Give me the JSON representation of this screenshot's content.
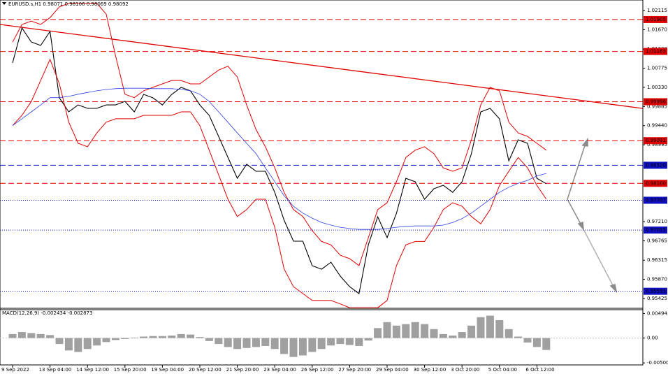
{
  "chart_data": [
    {
      "type": "line",
      "title": "EURUSD.s,H1 0.98071 0.98106 0.98069 0.98092",
      "categories": [
        "9 Sep 2022",
        null,
        null,
        null,
        "13 Sep 04:00",
        null,
        null,
        null,
        "14 Sep 12:00",
        null,
        null,
        null,
        "15 Sep 20:00",
        null,
        null,
        null,
        "19 Sep 04:00",
        null,
        null,
        null,
        "20 Sep 12:00",
        null,
        null,
        null,
        "21 Sep 20:00",
        null,
        null,
        null,
        "23 Sep 04:00",
        null,
        null,
        null,
        "26 Sep 12:00",
        null,
        null,
        null,
        "27 Sep 20:00",
        null,
        null,
        null,
        "29 Sep 04:00",
        null,
        null,
        null,
        "30 Sep 12:00",
        null,
        null,
        null,
        "3 Oct 20:00",
        null,
        null,
        null,
        "5 Oct 04:00",
        null,
        null,
        null,
        "6 Oct 12:00",
        null
      ],
      "series": [
        {
          "color": "#000000",
          "values": [
            1.00897,
            1.01709,
            1.01384,
            1.01303,
            1.01628,
            1.00085,
            0.9976,
            0.99922,
            0.99841,
            0.99841,
            0.99922,
            0.99922,
            1.00004,
            0.9976,
            1.00166,
            1.00085,
            0.99922,
            1.00166,
            1.00328,
            1.00247,
            0.99922,
            0.99679,
            0.99192,
            0.98704,
            0.98217,
            0.98542,
            0.9838,
            0.9838,
            0.97892,
            0.97243,
            0.96756,
            0.96756,
            0.96187,
            0.96106,
            0.96268,
            0.95944,
            0.957,
            0.95538,
            0.96675,
            0.97324,
            0.96837,
            0.97405,
            0.98217,
            0.98136,
            0.9773,
            0.97974,
            0.98055,
            0.97892,
            0.98136,
            0.98786,
            0.9976,
            0.99841,
            0.99598,
            0.98623,
            0.99111,
            0.99029,
            0.98217,
            0.98092
          ]
        },
        {
          "color": "#e00000",
          "values": [
            1.0138,
            1.0179,
            1.0187,
            1.0179,
            1.0195,
            1.022,
            1.0228,
            1.0228,
            1.0228,
            1.0228,
            1.0203,
            1.0106,
            1.0017,
            1.0009,
            1.0025,
            1.0033,
            1.0041,
            1.0049,
            1.0049,
            1.0041,
            1.0041,
            1.0057,
            1.0073,
            1.0082,
            1.0057,
            0.9992,
            0.9935,
            0.9895,
            0.9846,
            0.9789,
            0.9749,
            0.9733,
            0.97,
            0.9675,
            0.9667,
            0.9643,
            0.9635,
            0.9619,
            0.9684,
            0.9749,
            0.9765,
            0.9814,
            0.987,
            0.9887,
            0.9895,
            0.9879,
            0.9846,
            0.9838,
            0.9846,
            0.9911,
            0.9992,
            1.0033,
            1.0025,
            0.9952,
            0.9927,
            0.9919,
            0.9903,
            0.9887
          ]
        },
        {
          "color": "#e00000",
          "values": [
            0.9944,
            0.9968,
            1.0,
            1.0049,
            1.0098,
            1.0041,
            0.9952,
            0.9903,
            0.9895,
            0.9927,
            0.9952,
            0.996,
            0.996,
            0.996,
            0.9968,
            0.9968,
            0.9968,
            0.9968,
            0.9976,
            0.9976,
            0.9944,
            0.9887,
            0.983,
            0.9773,
            0.9733,
            0.9749,
            0.9773,
            0.9773,
            0.9708,
            0.9611,
            0.957,
            0.9554,
            0.9538,
            0.9538,
            0.9538,
            0.953,
            0.9521,
            0.9521,
            0.9521,
            0.9521,
            0.9538,
            0.9619,
            0.9667,
            0.9675,
            0.9675,
            0.9708,
            0.9749,
            0.9765,
            0.9757,
            0.9733,
            0.9716,
            0.9749,
            0.9805,
            0.9838,
            0.987,
            0.9846,
            0.9805,
            0.9773
          ]
        },
        {
          "color": "#3040e0",
          "values": [
            0.9944,
            0.996,
            0.9976,
            0.9992,
            1.0009,
            1.0009,
            1.0012,
            1.0017,
            1.0021,
            1.0025,
            1.0028,
            1.003,
            1.0031,
            1.0031,
            1.0031,
            1.003,
            1.003,
            1.003,
            1.0028,
            1.0025,
            1.0017,
            1.0,
            0.9976,
            0.9952,
            0.9927,
            0.9903,
            0.9879,
            0.9846,
            0.9814,
            0.9781,
            0.9757,
            0.9741,
            0.9729,
            0.9719,
            0.9713,
            0.9708,
            0.9705,
            0.9703,
            0.9703,
            0.9703,
            0.9705,
            0.9708,
            0.971,
            0.9711,
            0.9711,
            0.9711,
            0.9713,
            0.9719,
            0.9728,
            0.9741,
            0.9757,
            0.9773,
            0.9789,
            0.9801,
            0.981,
            0.9817,
            0.9827,
            0.9833
          ]
        }
      ],
      "trendline": {
        "color": "#e00000",
        "values": [
          1.0179,
          0.9984
        ]
      },
      "levels": [
        {
          "value": 1.01905,
          "label": "1.01905",
          "color": "#e00000",
          "style": "dashed"
        },
        {
          "value": 1.01163,
          "label": "1.01163",
          "color": "#e00000",
          "style": "dashed"
        },
        {
          "value": 0.99996,
          "label": "0.99996",
          "color": "#e00000",
          "style": "dashed"
        },
        {
          "value": 0.99091,
          "label": "0.99091",
          "color": "#e00000",
          "style": "dashed"
        },
        {
          "value": 0.9852,
          "label": "0.98520",
          "color": "#1010c0",
          "style": "dashed"
        },
        {
          "value": 0.981,
          "label": "0.98100",
          "color": "#e00000",
          "style": "dashed"
        },
        {
          "value": 0.97707,
          "label": "0.97707",
          "color": "#1010c0",
          "style": "dotted"
        },
        {
          "value": 0.97015,
          "label": "0.97015",
          "color": "#1010c0",
          "style": "dotted"
        },
        {
          "value": 0.95593,
          "label": "0.95593",
          "color": "#1010c0",
          "style": "dotted"
        }
      ],
      "ylim": [
        0.95214,
        1.02326
      ],
      "yticks": [
        1.02115,
        {
          "value": 1.0167,
          "label": "1.01670"
        },
        {
          "value": 1.0122,
          "label": "1.01220"
        },
        1.00775,
        {
          "value": 1.0033,
          "label": "1.00330"
        },
        0.99885,
        {
          "value": 0.9944,
          "label": "0.99440"
        },
        0.98995,
        {
          "value": 0.9721,
          "label": "0.97210"
        },
        0.96765,
        0.96315,
        {
          "value": 0.9587,
          "label": "0.95870"
        },
        0.95425
      ]
    },
    {
      "type": "bar",
      "title": "MACD(12,26,9) -0.002434 -0.002873",
      "color": "#a0a0a0",
      "values": [
        0.0008,
        0.0012,
        0.001,
        0.0008,
        0.0006,
        -0.0012,
        -0.0025,
        -0.0028,
        -0.0022,
        -0.0015,
        -0.0008,
        -0.0004,
        -0.0002,
        0.0001,
        0.0003,
        0.0004,
        0.0004,
        0.0005,
        0.0008,
        0.0007,
        0.0002,
        -0.0006,
        -0.0012,
        -0.0018,
        -0.0022,
        -0.002,
        -0.0018,
        -0.0016,
        -0.0022,
        -0.0032,
        -0.0038,
        -0.0035,
        -0.0028,
        -0.0022,
        -0.0015,
        -0.0012,
        -0.0014,
        -0.0016,
        -0.0005,
        0.002,
        0.0032,
        0.0025,
        0.0028,
        0.0032,
        0.0028,
        0.0018,
        0.0008,
        0.0005,
        0.0012,
        0.0025,
        0.0042,
        0.0045,
        0.0036,
        0.0018,
        0.0003,
        -0.0009,
        -0.0018,
        -0.0024
      ],
      "ylim": [
        -0.0054,
        0.0057
      ],
      "yticks": [
        0.004943,
        {
          "value": 0,
          "label": "0.00"
        },
        -0.005003
      ]
    }
  ]
}
